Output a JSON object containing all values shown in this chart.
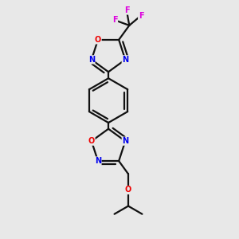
{
  "bg_color": "#e8e8e8",
  "atom_color_N": "#0000ee",
  "atom_color_O": "#ee0000",
  "atom_color_F": "#dd00dd",
  "bond_color": "#111111",
  "bond_width": 1.6,
  "figsize": [
    3.0,
    3.0
  ],
  "dpi": 100,
  "xlim": [
    0.25,
    0.85
  ],
  "ylim": [
    0.02,
    0.98
  ]
}
